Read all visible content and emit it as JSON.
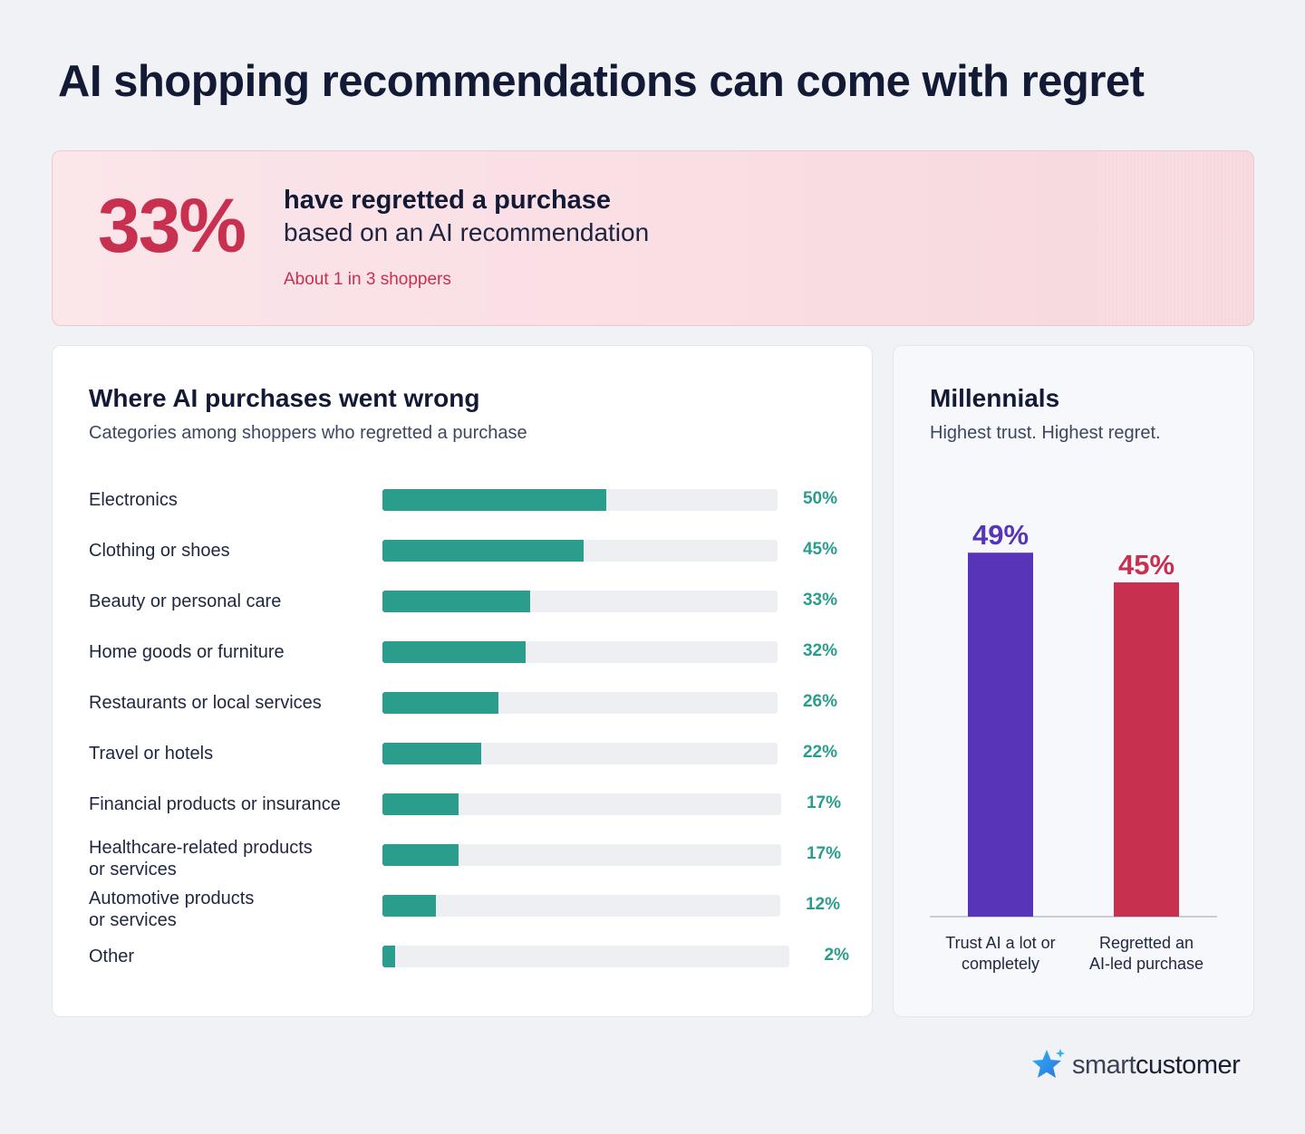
{
  "title": "AI shopping recommendations can come with regret",
  "hero": {
    "percent": "33%",
    "line1": "have regretted a purchase",
    "line2": "based on an AI recommendation",
    "note": "About 1 in 3 shoppers"
  },
  "left_card": {
    "title": "Where AI purchases went wrong",
    "subtitle": "Categories among shoppers who regretted a purchase"
  },
  "right_card": {
    "title": "Millennials",
    "subtitle": "Highest trust. Highest regret."
  },
  "colors": {
    "teal": "#2a9d8d",
    "purple": "#5734b8",
    "crimson": "#c8304f"
  },
  "brand": {
    "logo_icon": "star-icon",
    "name_part1": "smart",
    "name_part2": "customer"
  },
  "chart_data": [
    {
      "type": "bar",
      "orientation": "horizontal",
      "title": "Where AI purchases went wrong",
      "subtitle": "Categories among shoppers who regretted a purchase",
      "categories": [
        "Electronics",
        "Clothing or shoes",
        "Beauty or personal care",
        "Home goods or furniture",
        "Restaurants or local services",
        "Travel or hotels",
        "Financial products or insurance",
        "Healthcare-related products\nor services",
        "Automotive products\nor services",
        "Other"
      ],
      "values": [
        50,
        45,
        33,
        32,
        26,
        22,
        17,
        17,
        12,
        2
      ],
      "value_labels": [
        "50%",
        "45%",
        "33%",
        "32%",
        "26%",
        "22%",
        "17%",
        "17%",
        "12%",
        "2%"
      ],
      "unit": "%"
    },
    {
      "type": "bar",
      "orientation": "vertical",
      "title": "Millennials",
      "subtitle": "Highest trust. Highest regret.",
      "categories": [
        "Trust AI a lot or\ncompletely",
        "Regretted an\nAI-led purchase"
      ],
      "values": [
        49,
        45
      ],
      "value_labels": [
        "49%",
        "45%"
      ],
      "colors": [
        "#5734b8",
        "#c8304f"
      ],
      "unit": "%"
    }
  ]
}
